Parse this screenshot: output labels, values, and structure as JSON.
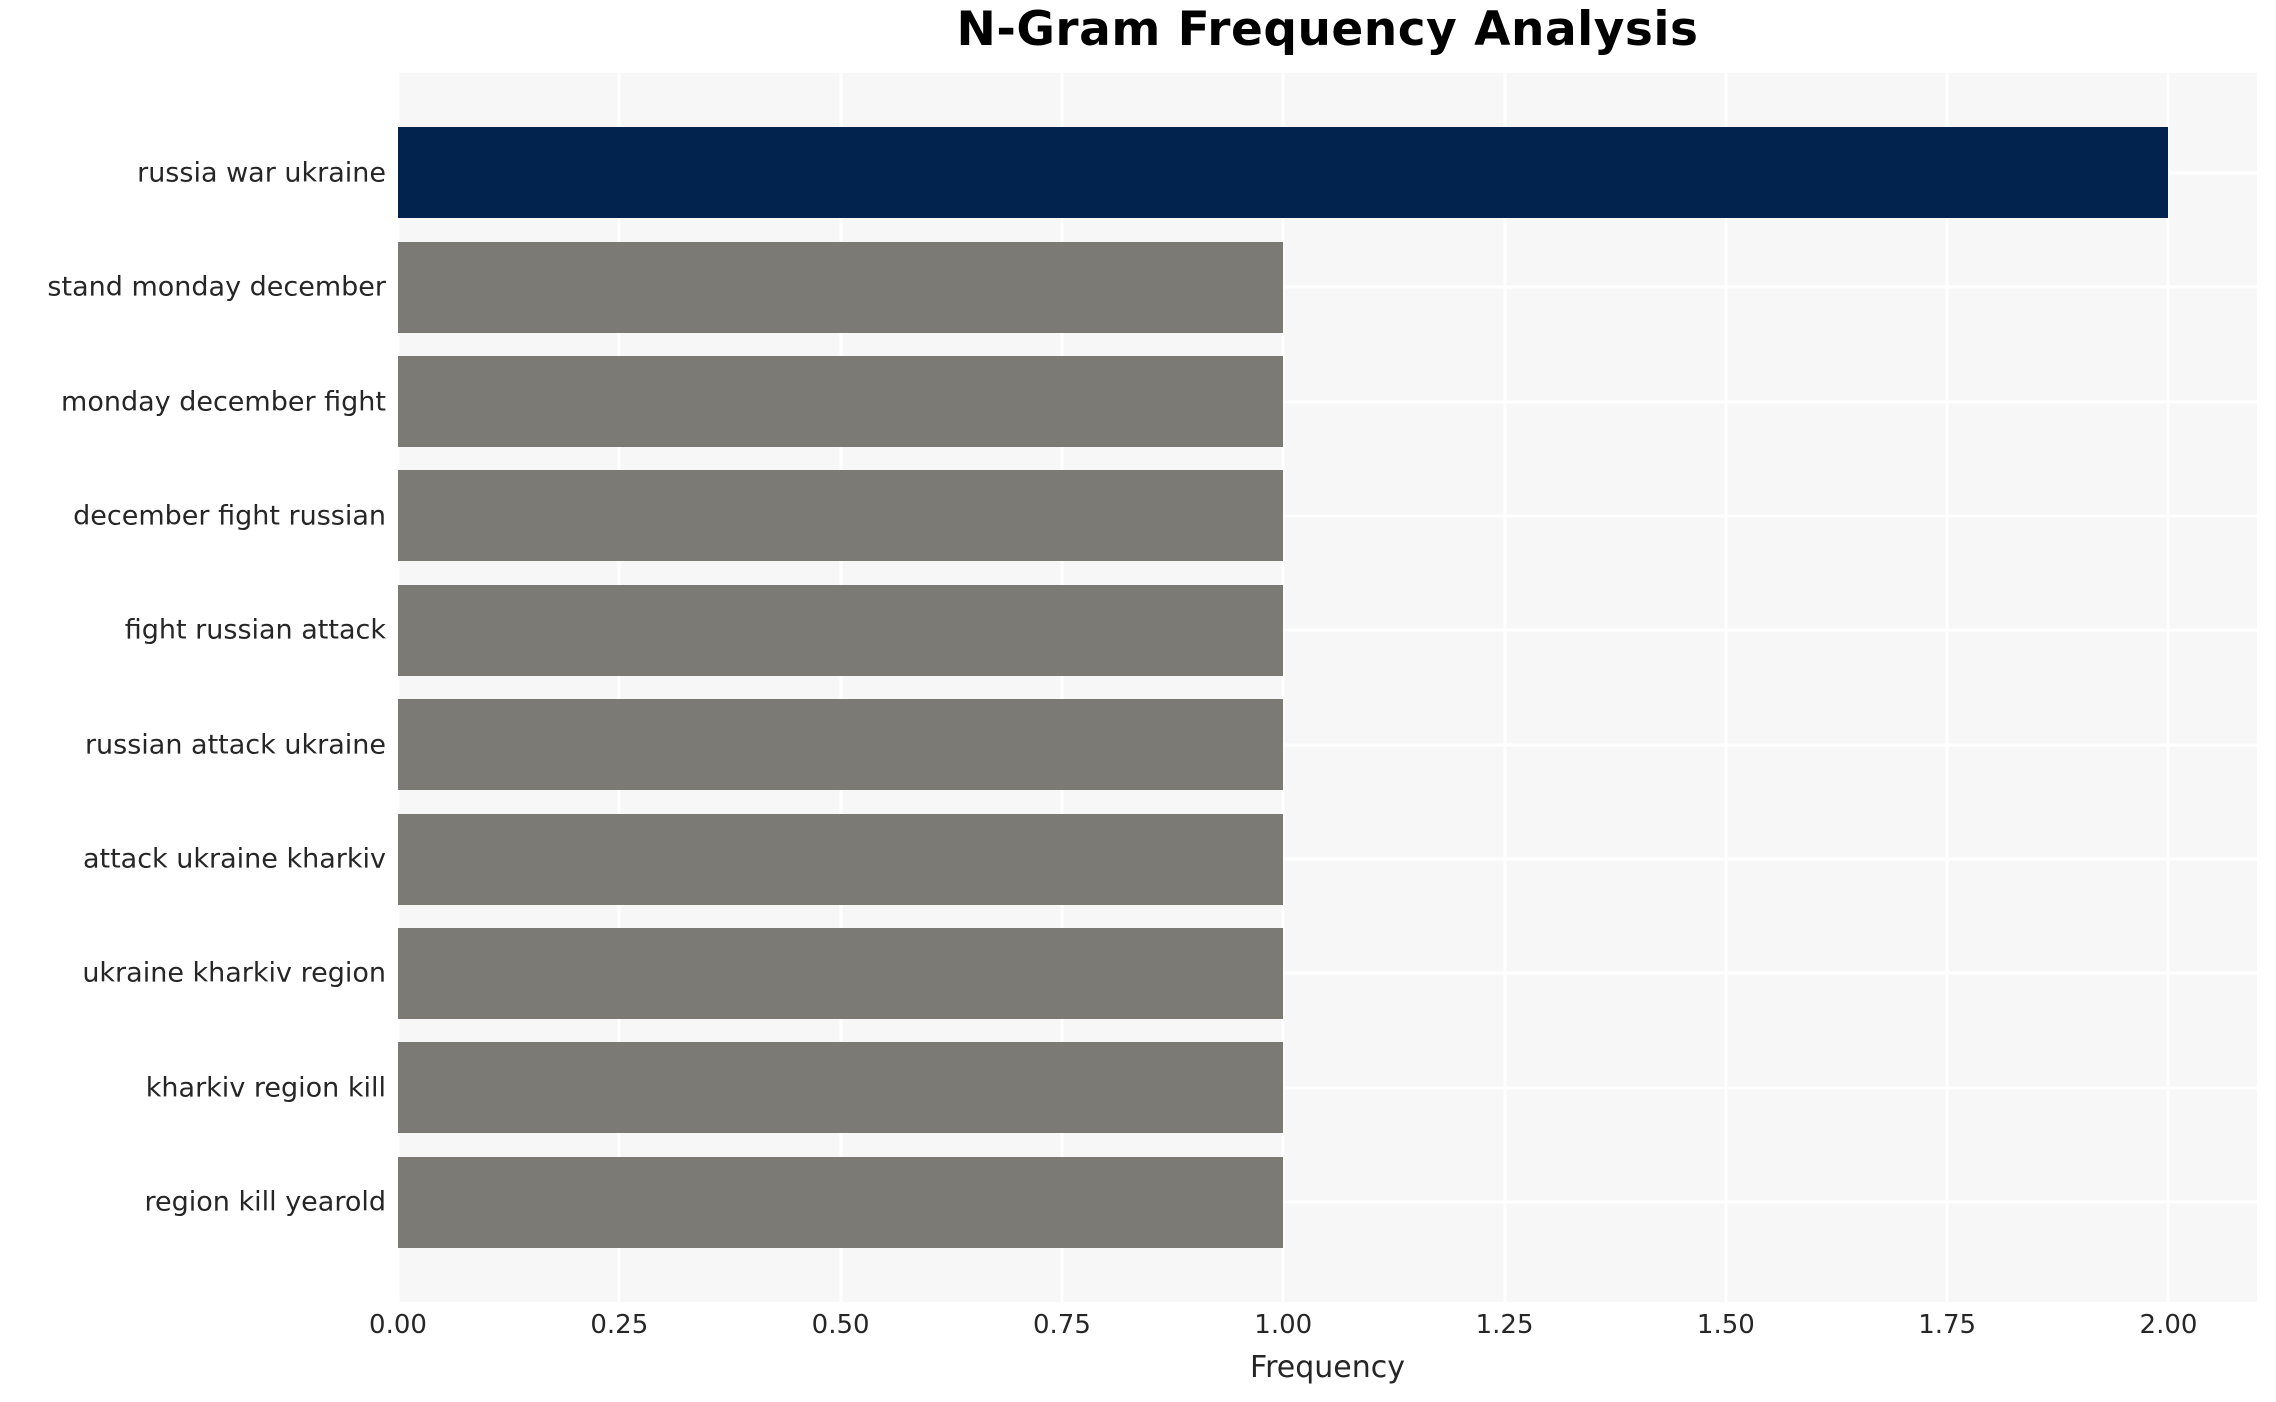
{
  "chart_data": {
    "type": "bar",
    "orientation": "horizontal",
    "title": "N-Gram Frequency Analysis",
    "xlabel": "Frequency",
    "ylabel": "",
    "categories": [
      "russia war ukraine",
      "stand monday december",
      "monday december fight",
      "december fight russian",
      "fight russian attack",
      "russian attack ukraine",
      "attack ukraine kharkiv",
      "ukraine kharkiv region",
      "kharkiv region kill",
      "region kill yearold"
    ],
    "values": [
      2,
      1,
      1,
      1,
      1,
      1,
      1,
      1,
      1,
      1
    ],
    "bar_colors": [
      "#01234e",
      "#7b7a74",
      "#7b7a74",
      "#7b7a74",
      "#7b7a74",
      "#7b7a74",
      "#7b7a74",
      "#7b7a74",
      "#7b7a74",
      "#7b7a74"
    ],
    "xlim": [
      0,
      2.1
    ],
    "xticks": [
      0,
      0.25,
      0.5,
      0.75,
      1.0,
      1.25,
      1.5,
      1.75,
      2.0
    ],
    "xtick_decimals": 2,
    "grid": true,
    "legend": false,
    "style": {
      "figure_bg": "#ffffff",
      "plot_bg": "#f7f7f7",
      "grid_color": "#ffffff",
      "text_color": "#262626",
      "title_color": "#000000",
      "highlight_color": "#01234e",
      "default_bar_color": "#7b7a74"
    }
  }
}
